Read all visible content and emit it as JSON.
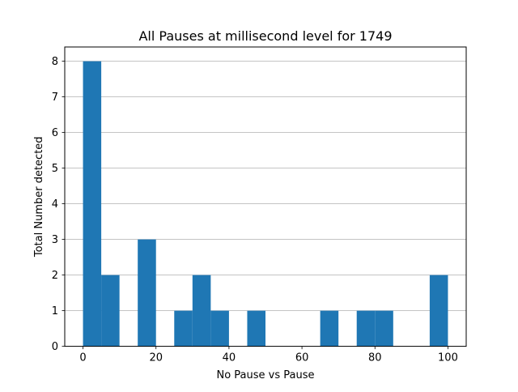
{
  "chart_data": {
    "type": "bar",
    "title": "All Pauses at millisecond level for 1749",
    "xlabel": "No Pause vs Pause",
    "ylabel": "Total Number detected",
    "xlim": [
      -5,
      105
    ],
    "ylim": [
      0,
      8.4
    ],
    "bin_width": 5,
    "bins": [
      {
        "x0": 0,
        "x1": 5,
        "count": 8
      },
      {
        "x0": 5,
        "x1": 10,
        "count": 2
      },
      {
        "x0": 10,
        "x1": 15,
        "count": 0
      },
      {
        "x0": 15,
        "x1": 20,
        "count": 3
      },
      {
        "x0": 20,
        "x1": 25,
        "count": 0
      },
      {
        "x0": 25,
        "x1": 30,
        "count": 1
      },
      {
        "x0": 30,
        "x1": 35,
        "count": 2
      },
      {
        "x0": 35,
        "x1": 40,
        "count": 1
      },
      {
        "x0": 40,
        "x1": 45,
        "count": 0
      },
      {
        "x0": 45,
        "x1": 50,
        "count": 1
      },
      {
        "x0": 50,
        "x1": 55,
        "count": 0
      },
      {
        "x0": 55,
        "x1": 60,
        "count": 0
      },
      {
        "x0": 60,
        "x1": 65,
        "count": 0
      },
      {
        "x0": 65,
        "x1": 70,
        "count": 1
      },
      {
        "x0": 70,
        "x1": 75,
        "count": 0
      },
      {
        "x0": 75,
        "x1": 80,
        "count": 1
      },
      {
        "x0": 80,
        "x1": 85,
        "count": 1
      },
      {
        "x0": 85,
        "x1": 90,
        "count": 0
      },
      {
        "x0": 90,
        "x1": 95,
        "count": 0
      },
      {
        "x0": 95,
        "x1": 100,
        "count": 2
      }
    ],
    "xticks": [
      "0",
      "20",
      "40",
      "60",
      "80",
      "100"
    ],
    "yticks": [
      "0",
      "1",
      "2",
      "3",
      "4",
      "5",
      "6",
      "7",
      "8"
    ],
    "grid": "horizontal",
    "legend": "none",
    "colors": {
      "bar": "#1f77b4",
      "grid": "#b0b0b0",
      "axis": "#000000"
    }
  }
}
